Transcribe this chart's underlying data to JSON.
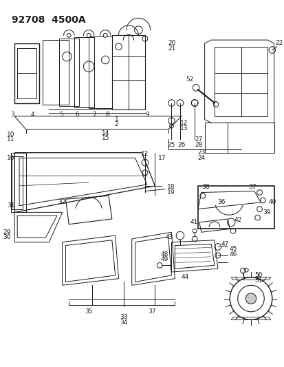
{
  "title": "92708  4500A",
  "bg_color": "#ffffff",
  "line_color": "#1a1a1a",
  "title_fontsize": 10,
  "label_fontsize": 6.5,
  "fig_width": 4.14,
  "fig_height": 5.33,
  "dpi": 100
}
